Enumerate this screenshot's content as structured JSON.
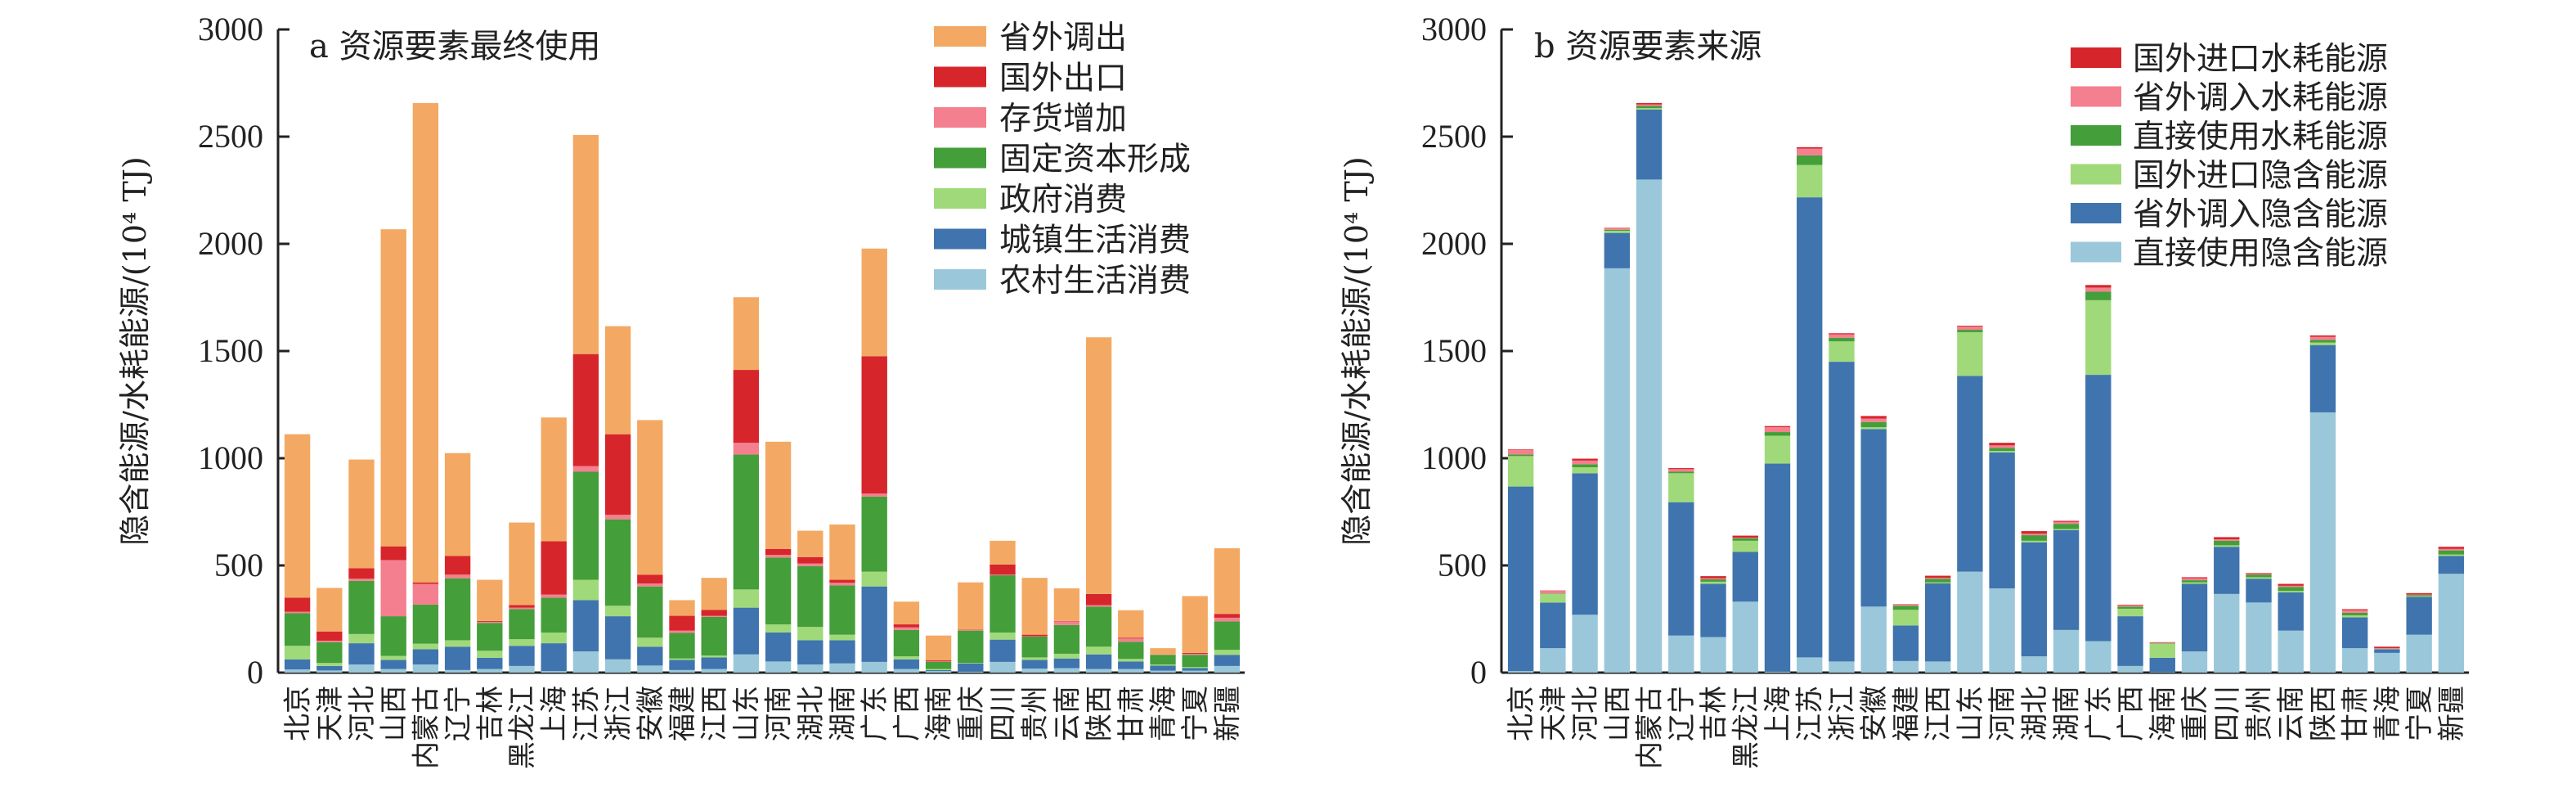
{
  "provinces": [
    "北京",
    "天津",
    "河北",
    "山西",
    "内蒙古",
    "辽宁",
    "吉林",
    "黑龙江",
    "上海",
    "江苏",
    "浙江",
    "安徽",
    "福建",
    "江西",
    "山东",
    "河南",
    "湖北",
    "湖南",
    "广东",
    "广西",
    "海南",
    "重庆",
    "四川",
    "贵州",
    "云南",
    "陕西",
    "甘肃",
    "青海",
    "宁夏",
    "新疆"
  ],
  "chart_data": [
    {
      "type": "bar",
      "stacked": true,
      "title": "a 资源要素最终使用",
      "ylabel": "隐含能源/水耗能源/(10⁴ TJ)",
      "xlabel": "",
      "ylim": [
        0,
        3000
      ],
      "yticks": [
        "0",
        "500",
        "1000",
        "1500",
        "2000",
        "2500",
        "3000"
      ],
      "legend_position": "top-right",
      "series": [
        {
          "name": "农村生活消费",
          "color": "#9ac8da",
          "values": [
            15,
            10,
            38,
            17,
            38,
            12,
            17,
            31,
            7,
            99,
            62,
            33,
            12,
            17,
            85,
            52,
            38,
            43,
            50,
            17,
            7,
            5,
            50,
            19,
            21,
            17,
            17,
            9,
            9,
            31
          ]
        },
        {
          "name": "城镇生活消费",
          "color": "#3f74ae",
          "values": [
            47,
            21,
            99,
            42,
            71,
            109,
            52,
            94,
            130,
            239,
            201,
            88,
            47,
            54,
            218,
            135,
            113,
            108,
            352,
            45,
            5,
            38,
            104,
            40,
            45,
            68,
            35,
            24,
            12,
            52
          ]
        },
        {
          "name": "政府消费",
          "color": "#a0d97a",
          "values": [
            63,
            14,
            43,
            19,
            26,
            30,
            33,
            31,
            50,
            95,
            49,
            42,
            7,
            9,
            85,
            38,
            62,
            26,
            69,
            14,
            5,
            2,
            33,
            12,
            22,
            36,
            12,
            5,
            5,
            23
          ]
        },
        {
          "name": "固定资本形成",
          "color": "#449e3a",
          "values": [
            152,
            97,
            248,
            185,
            182,
            289,
            130,
            140,
            163,
            504,
            403,
            239,
            119,
            180,
            629,
            312,
            284,
            230,
            350,
            123,
            33,
            151,
            267,
            97,
            134,
            187,
            80,
            45,
            57,
            133
          ]
        },
        {
          "name": "存货增加",
          "color": "#f47f8f",
          "values": [
            7,
            7,
            10,
            262,
            97,
            17,
            5,
            7,
            14,
            26,
            21,
            14,
            11,
            5,
            55,
            12,
            12,
            12,
            14,
            12,
            2,
            3,
            3,
            2,
            17,
            7,
            15,
            2,
            5,
            17
          ]
        },
        {
          "name": "国外出口",
          "color": "#d6262c",
          "values": [
            66,
            43,
            49,
            64,
            7,
            87,
            4,
            12,
            249,
            523,
            376,
            41,
            69,
            28,
            340,
            28,
            30,
            14,
            641,
            14,
            5,
            2,
            47,
            7,
            2,
            52,
            4,
            0,
            4,
            18
          ]
        },
        {
          "name": "省外调出",
          "color": "#f3a963",
          "values": [
            762,
            203,
            507,
            1479,
            2236,
            480,
            192,
            385,
            577,
            1022,
            504,
            721,
            73,
            149,
            339,
            500,
            123,
            258,
            502,
            106,
            116,
            220,
            111,
            265,
            152,
            1197,
            128,
            29,
            265,
            306
          ]
        }
      ]
    },
    {
      "type": "bar",
      "stacked": true,
      "title": "b 资源要素来源",
      "ylabel": "隐含能源/水耗能源/(10⁴ TJ)",
      "xlabel": "",
      "ylim": [
        0,
        3000
      ],
      "yticks": [
        "0",
        "500",
        "1000",
        "1500",
        "2000",
        "2500",
        "3000"
      ],
      "legend_position": "top-right",
      "series": [
        {
          "name": "直接使用隐含能源",
          "color": "#9ac8da",
          "values": [
            7,
            114,
            270,
            1886,
            2300,
            173,
            166,
            331,
            5,
            71,
            52,
            308,
            54,
            52,
            471,
            393,
            76,
            199,
            147,
            31,
            2,
            99,
            367,
            327,
            196,
            1214,
            114,
            92,
            177,
            461
          ]
        },
        {
          "name": "省外调入隐含能源",
          "color": "#3f74ae",
          "values": [
            861,
            213,
            660,
            165,
            326,
            622,
            248,
            232,
            970,
            2146,
            1398,
            828,
            166,
            364,
            913,
            634,
            532,
            466,
            1242,
            232,
            67,
            315,
            220,
            111,
            178,
            314,
            144,
            17,
            176,
            83
          ]
        },
        {
          "name": "国外进口隐含能源",
          "color": "#a0d97a",
          "values": [
            142,
            40,
            28,
            10,
            7,
            135,
            10,
            52,
            130,
            151,
            95,
            9,
            73,
            5,
            204,
            7,
            7,
            5,
            348,
            35,
            66,
            7,
            7,
            7,
            7,
            12,
            9,
            2,
            4,
            7
          ]
        },
        {
          "name": "直接使用水耗能源",
          "color": "#449e3a",
          "values": [
            7,
            2,
            14,
            5,
            10,
            7,
            11,
            12,
            17,
            45,
            17,
            24,
            19,
            17,
            11,
            14,
            26,
            24,
            40,
            10,
            2,
            10,
            21,
            12,
            19,
            12,
            12,
            0,
            5,
            19
          ]
        },
        {
          "name": "省外调入水耗能源",
          "color": "#f47f8f",
          "values": [
            21,
            12,
            17,
            7,
            7,
            12,
            5,
            2,
            23,
            31,
            16,
            16,
            5,
            4,
            15,
            12,
            7,
            9,
            19,
            7,
            3,
            9,
            7,
            2,
            5,
            14,
            12,
            3,
            2,
            7
          ]
        },
        {
          "name": "国外进口水耗能源",
          "color": "#d6262c",
          "values": [
            3,
            2,
            9,
            2,
            7,
            5,
            10,
            10,
            5,
            7,
            5,
            12,
            2,
            10,
            4,
            12,
            12,
            5,
            12,
            2,
            2,
            5,
            10,
            5,
            9,
            7,
            5,
            7,
            7,
            10
          ]
        }
      ]
    }
  ]
}
